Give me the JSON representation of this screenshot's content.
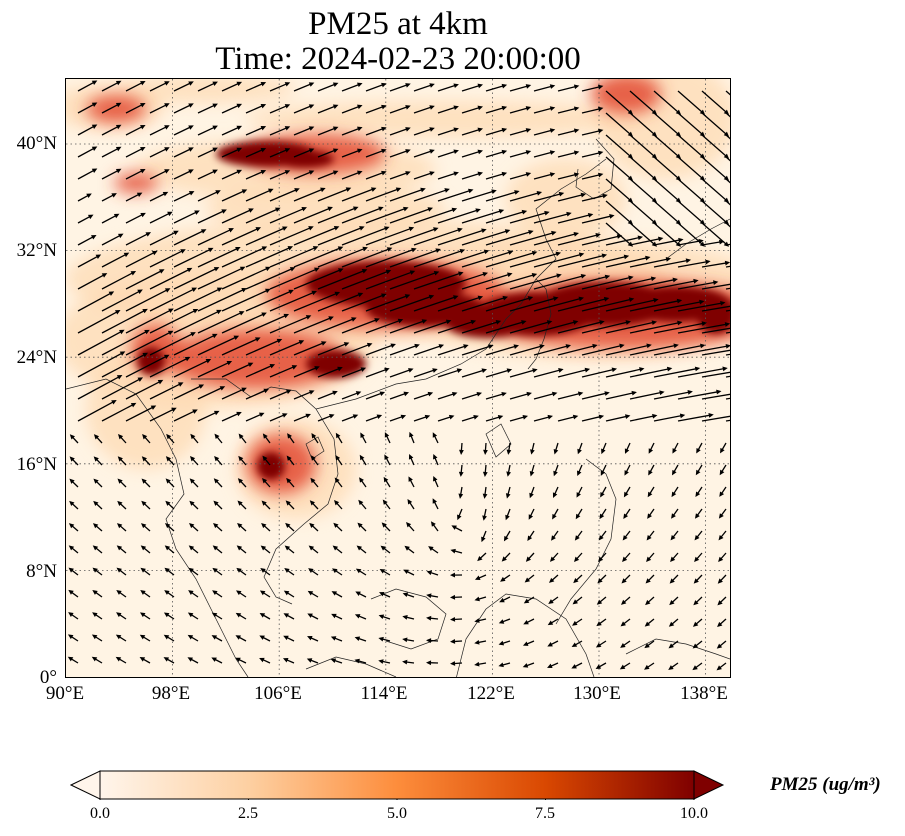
{
  "title": {
    "line1": "PM25 at 4km",
    "line2": "Time: 2024-02-23 20:00:00"
  },
  "map": {
    "extent": {
      "lon": [
        90,
        140
      ],
      "lat": [
        0,
        45
      ]
    },
    "lat_ticks": [
      "40°N",
      "32°N",
      "24°N",
      "16°N",
      "8°N",
      "0°"
    ],
    "lon_ticks": [
      "90°E",
      "98°E",
      "106°E",
      "114°E",
      "122°E",
      "130°E",
      "138°E"
    ],
    "gridlines": "dotted",
    "variable": "PM25",
    "overlay": "wind vectors"
  },
  "colorbar": {
    "label": "PM25 (ug/m³)",
    "ticks": [
      "0.0",
      "2.5",
      "5.0",
      "7.5",
      "10.0"
    ],
    "range": [
      0,
      10
    ],
    "extend": "both",
    "colormap": [
      "#fff5eb",
      "#fdd0a2",
      "#fd8d3c",
      "#d94801",
      "#7f2704"
    ],
    "colormap_name": "OrRd-like"
  },
  "colors": {
    "high_pm": "#7f0000",
    "mid_pm": "#e34a33",
    "low_pm": "#fdd8b0",
    "background_pm": "#fff4e4",
    "arrows": "#000000"
  }
}
